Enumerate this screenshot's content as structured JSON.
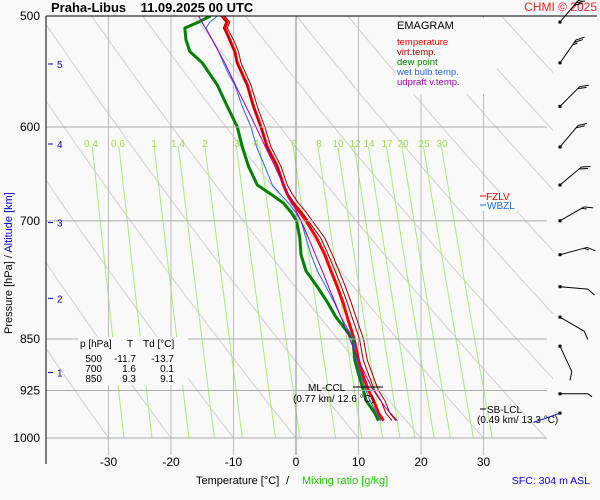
{
  "header": {
    "title": "Praha-Libus    11.09.2025 00 UTC",
    "copyright": "CHMI © 2025"
  },
  "legend": {
    "title": "EMAGRAM",
    "items": [
      {
        "label": "temperature",
        "color": "#ff0000"
      },
      {
        "label": "virt.temp.",
        "color": "#a00000"
      },
      {
        "label": "dew point",
        "color": "#008000"
      },
      {
        "label": "wet bulb temp.",
        "color": "#1e6ee6"
      },
      {
        "label": "udpraft v.temp.",
        "color": "#a000b4"
      }
    ]
  },
  "levels_table": {
    "headers": [
      "p [hPa]",
      "T",
      "Td [°C]"
    ],
    "rows": [
      [
        "500",
        "-11.7",
        "-13.7"
      ],
      [
        "700",
        "1.6",
        "0.1"
      ],
      [
        "850",
        "9.3",
        "9.1"
      ]
    ]
  },
  "annotations": {
    "fzl": "FZLV",
    "wbzl": "WBZL",
    "ml_ccl_label": "ML-CCL",
    "ml_ccl_value": "(0.77 km/ 12.6 °C)",
    "sb_lcl_label": "SB-LCL",
    "sb_lcl_value": "(0.49 km/ 13.3 °C)",
    "surface": "SFC: 304 m ASL"
  },
  "chart_data": {
    "type": "line",
    "title": "Praha-Libus 11.09.2025 00 UTC",
    "xlabel": "Temperature [°C]",
    "xlabel_secondary": "Mixing ratio [g/kg]",
    "ylabel": "Pressure [hPa]",
    "ylabel_secondary": "Altitude [km]",
    "xlim": [
      -37,
      43
    ],
    "ylim": [
      1000,
      500
    ],
    "y_scale": "log",
    "x_ticks": [
      -30,
      -20,
      -10,
      0,
      10,
      20,
      30
    ],
    "y_ticks": [
      500,
      600,
      700,
      850,
      925,
      1000
    ],
    "altitude_ticks": [
      {
        "km": 1,
        "p": 898
      },
      {
        "km": 2,
        "p": 795
      },
      {
        "km": 3,
        "p": 702
      },
      {
        "km": 4,
        "p": 617
      },
      {
        "km": 5,
        "p": 541
      }
    ],
    "mixing_ratio_labels": [
      "0.4",
      "0.6",
      "1",
      "1.4",
      "2",
      "3",
      "4",
      "6",
      "8",
      "10",
      "12",
      "14",
      "17",
      "20",
      "25",
      "30"
    ],
    "mixing_ratio_values": [
      0.4,
      0.6,
      1,
      1.4,
      2,
      3,
      4,
      6,
      8,
      10,
      12,
      14,
      17,
      20,
      25,
      30
    ],
    "grid": true,
    "legend_position": "top-right",
    "series": [
      {
        "name": "temperature",
        "color": "#ff0000",
        "p": [
          972,
          960,
          940,
          925,
          900,
          880,
          850,
          820,
          800,
          780,
          760,
          740,
          720,
          700,
          690,
          680,
          670,
          660,
          640,
          620,
          600,
          580,
          560,
          550,
          540,
          530,
          520,
          510,
          505,
          500
        ],
        "t": [
          14.0,
          13.2,
          12.4,
          11.6,
          10.6,
          10.0,
          9.3,
          8.2,
          7.5,
          6.6,
          5.6,
          4.6,
          3.3,
          1.6,
          0.6,
          -0.6,
          -1.4,
          -2.0,
          -3.0,
          -4.6,
          -5.6,
          -6.8,
          -7.8,
          -8.6,
          -9.4,
          -9.8,
          -10.6,
          -11.4,
          -11.0,
          -11.7
        ]
      },
      {
        "name": "virt.temp.",
        "color": "#a00000",
        "p": [
          972,
          960,
          940,
          925,
          900,
          880,
          850,
          820,
          800,
          780,
          760,
          740,
          720,
          700,
          690,
          680,
          670,
          660,
          640,
          620,
          600,
          580,
          560,
          550,
          540,
          530,
          520,
          510,
          505,
          500
        ],
        "t": [
          16.0,
          15.0,
          14.2,
          13.2,
          12.2,
          11.4,
          10.8,
          9.6,
          8.8,
          7.9,
          6.9,
          5.8,
          4.6,
          2.6,
          1.6,
          0.4,
          -0.6,
          -1.4,
          -2.4,
          -4.0,
          -5.0,
          -6.2,
          -7.2,
          -8.0,
          -8.8,
          -9.2,
          -10.0,
          -11.0,
          -10.6,
          -11.4
        ]
      },
      {
        "name": "dew point",
        "color": "#008000",
        "p": [
          972,
          960,
          940,
          925,
          900,
          880,
          850,
          820,
          800,
          780,
          760,
          740,
          720,
          700,
          690,
          680,
          670,
          660,
          640,
          620,
          600,
          580,
          560,
          550,
          540,
          530,
          520,
          510,
          505,
          500
        ],
        "t": [
          13.2,
          12.6,
          11.2,
          10.8,
          10.0,
          9.4,
          9.1,
          6.4,
          5.0,
          3.4,
          1.6,
          0.8,
          0.6,
          0.1,
          -0.8,
          -2.0,
          -4.0,
          -6.2,
          -7.6,
          -8.6,
          -9.4,
          -11.0,
          -12.6,
          -13.8,
          -15.0,
          -17.0,
          -17.6,
          -17.8,
          -15.6,
          -13.7
        ]
      },
      {
        "name": "wet bulb temp.",
        "color": "#1e6ee6",
        "p": [
          972,
          960,
          940,
          925,
          900,
          880,
          850,
          820,
          800,
          780,
          760,
          740,
          720,
          700,
          690,
          680,
          670,
          660,
          640,
          620,
          600,
          580,
          560,
          550,
          540,
          530,
          520,
          510,
          505,
          500
        ],
        "t": [
          13.6,
          12.9,
          11.8,
          11.2,
          10.3,
          9.7,
          9.2,
          7.2,
          6.1,
          4.8,
          3.4,
          2.4,
          1.6,
          0.8,
          -0.1,
          -1.2,
          -2.5,
          -3.8,
          -5.0,
          -6.3,
          -7.2,
          -8.6,
          -9.8,
          -10.8,
          -11.6,
          -12.4,
          -13.4,
          -14.4,
          -13.8,
          -12.6
        ]
      },
      {
        "name": "udpraft v.temp.",
        "color": "#a000b4",
        "p": [
          972,
          950,
          925,
          900,
          880,
          850,
          820,
          800,
          780,
          760,
          740,
          720,
          700,
          680,
          660,
          640,
          620,
          600,
          580,
          560,
          540,
          520,
          500
        ],
        "t": [
          16.2,
          14.2,
          12.4,
          11.0,
          10.0,
          8.6,
          7.2,
          6.2,
          5.2,
          4.2,
          3.1,
          2.0,
          0.8,
          -0.6,
          -2.0,
          -3.4,
          -4.9,
          -6.4,
          -8.0,
          -9.7,
          -11.4,
          -13.4,
          -15.6
        ]
      }
    ],
    "wind_barbs": [
      {
        "p": 505,
        "dir": 220,
        "speed_kt": 30
      },
      {
        "p": 540,
        "dir": 215,
        "speed_kt": 25
      },
      {
        "p": 580,
        "dir": 225,
        "speed_kt": 20
      },
      {
        "p": 620,
        "dir": 220,
        "speed_kt": 20
      },
      {
        "p": 660,
        "dir": 230,
        "speed_kt": 20
      },
      {
        "p": 700,
        "dir": 240,
        "speed_kt": 15
      },
      {
        "p": 740,
        "dir": 255,
        "speed_kt": 15
      },
      {
        "p": 780,
        "dir": 275,
        "speed_kt": 10
      },
      {
        "p": 820,
        "dir": 300,
        "speed_kt": 10
      },
      {
        "p": 860,
        "dir": 335,
        "speed_kt": 10
      },
      {
        "p": 930,
        "dir": 270,
        "speed_kt": 5
      },
      {
        "p": 960,
        "dir": 250,
        "speed_kt": 0
      }
    ]
  }
}
